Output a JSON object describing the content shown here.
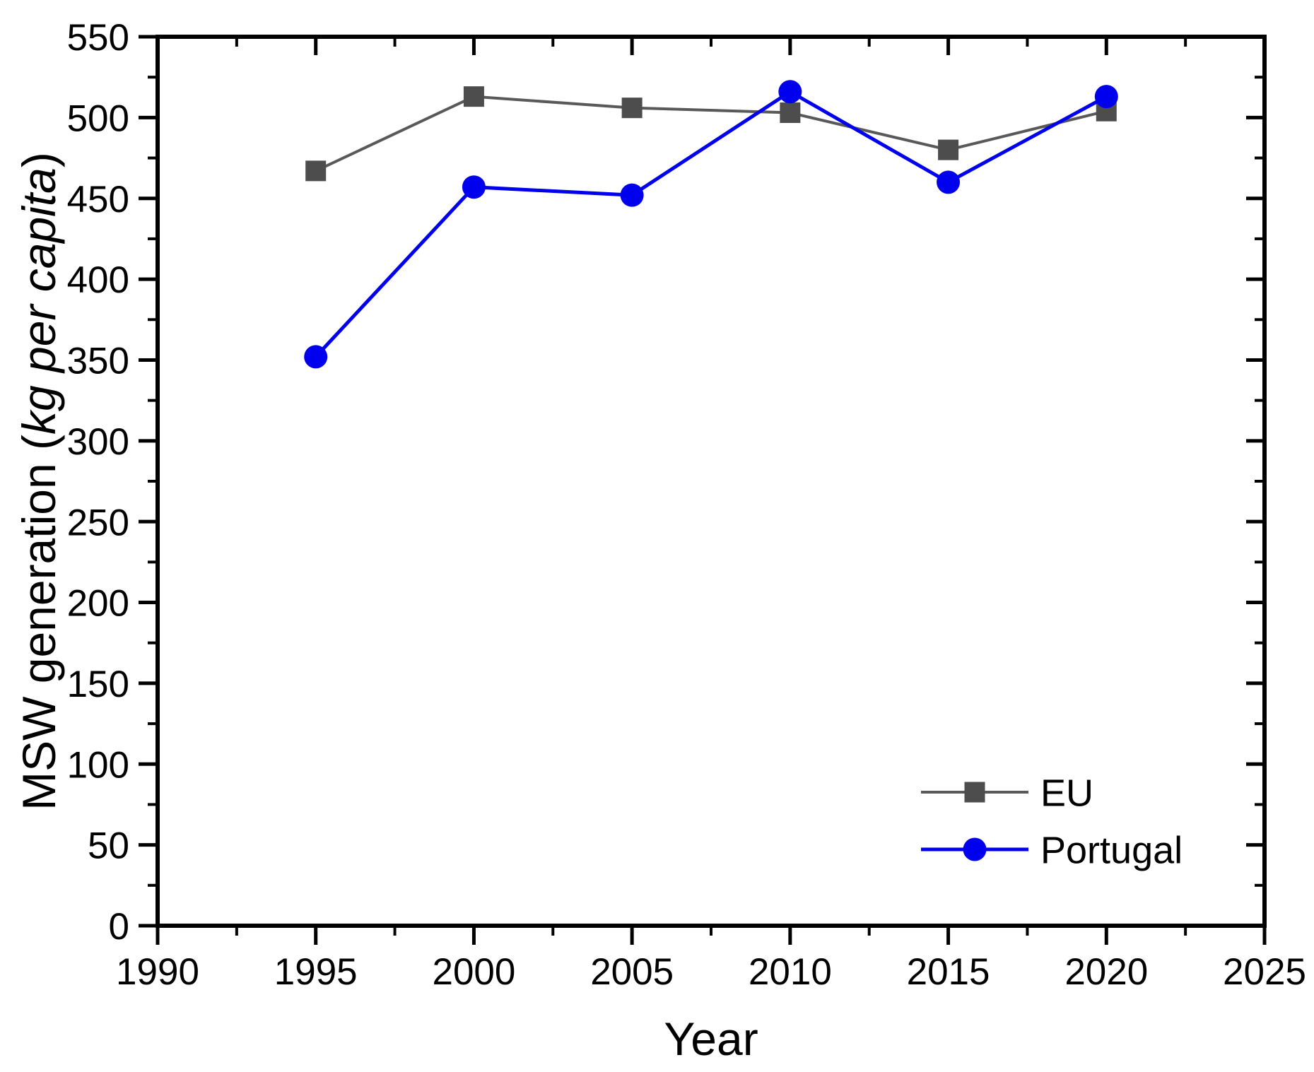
{
  "chart_data": {
    "type": "line",
    "title": "",
    "xlabel": "Year",
    "ylabel_prefix": "MSW generation (",
    "ylabel_italic": "kg per capita",
    "ylabel_suffix": ")",
    "xlim": [
      1990,
      2025
    ],
    "ylim": [
      0,
      550
    ],
    "x_major_ticks": [
      1990,
      1995,
      2000,
      2005,
      2010,
      2015,
      2020,
      2025
    ],
    "x_minor_interval": 2.5,
    "y_major_ticks": [
      0,
      50,
      100,
      150,
      200,
      250,
      300,
      350,
      400,
      450,
      500,
      550
    ],
    "y_minor_interval": 25,
    "grid": false,
    "legend_position": "inside-bottom-right",
    "background_color": "#ffffff",
    "axis_color": "#000000",
    "x": [
      1995,
      2000,
      2005,
      2010,
      2015,
      2020
    ],
    "series": [
      {
        "name": "EU",
        "values": [
          467,
          513,
          506,
          503,
          480,
          504
        ],
        "color": "#595959",
        "marker_color": "#4d4d4d",
        "marker": "square",
        "line_width": 4
      },
      {
        "name": "Portugal",
        "values": [
          352,
          457,
          452,
          516,
          460,
          513
        ],
        "color": "#0000ee",
        "marker_color": "#0000ee",
        "marker": "circle",
        "line_width": 5
      }
    ]
  }
}
